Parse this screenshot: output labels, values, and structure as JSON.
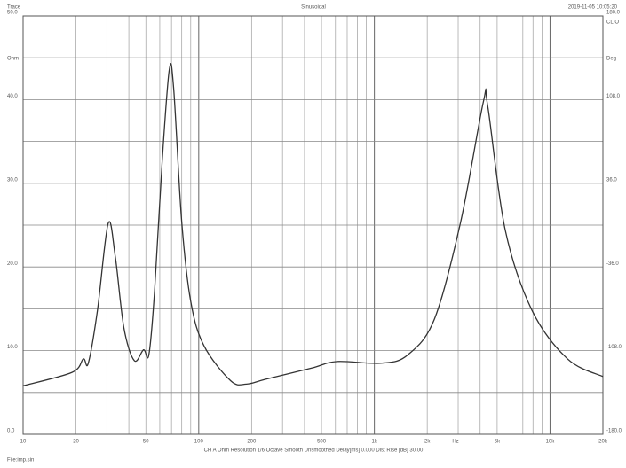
{
  "chart_data": {
    "type": "line",
    "header_left": "Trace",
    "title": "Sinusoidal",
    "timestamp": "2019-11-05 10:05:20",
    "brand": "CLIO",
    "ylabel": "Ohm",
    "y2label": "Deg",
    "xlabel": "Hz",
    "footer": "CH A   Ohm   Resolution 1/6 Octave   Smooth Unsmoothed   Delay[ms] 0.000   Dist Rise [dB] 30.00",
    "file": "File:imp.sin",
    "xscale": "log",
    "xlim": [
      10,
      20000
    ],
    "xticks": [
      10,
      20,
      50,
      100,
      200,
      500,
      {
        "value": 1000,
        "label": "1k"
      },
      {
        "value": 2000,
        "label": "2k"
      },
      {
        "value": 5000,
        "label": "5k"
      },
      {
        "value": 10000,
        "label": "10k"
      },
      {
        "value": 20000,
        "label": "20k"
      }
    ],
    "xgrid": [
      10,
      20,
      30,
      40,
      50,
      60,
      70,
      80,
      90,
      100,
      200,
      300,
      400,
      500,
      600,
      700,
      800,
      900,
      1000,
      2000,
      3000,
      4000,
      5000,
      6000,
      7000,
      8000,
      9000,
      10000,
      20000
    ],
    "ylim": [
      0,
      50
    ],
    "yticks": [
      {
        "value": 0,
        "label": "0.0"
      },
      {
        "value": 10,
        "label": "10.0"
      },
      {
        "value": 20,
        "label": "20.0"
      },
      {
        "value": 30,
        "label": "30.0"
      },
      {
        "value": 40,
        "label": "40.0"
      },
      {
        "value": 50,
        "label": "50.0"
      }
    ],
    "ygrid": [
      0,
      5,
      10,
      15,
      20,
      25,
      30,
      35,
      40,
      45,
      50
    ],
    "y2lim": [
      -180,
      180
    ],
    "y2ticks": [
      {
        "value": -180,
        "label": "-180.0"
      },
      {
        "value": -108,
        "label": "-108.0"
      },
      {
        "value": -36,
        "label": "-36.0"
      },
      {
        "value": 36,
        "label": "36.0"
      },
      {
        "value": 108,
        "label": "108.0"
      },
      {
        "value": 180,
        "label": "180.0"
      }
    ],
    "series": [
      {
        "color": "#333333",
        "x": [
          10,
          19,
          22,
          23.5,
          26.5,
          30.5,
          33.5,
          37.5,
          43,
          48.5,
          52,
          56,
          62,
          68,
          72,
          80,
          90,
          107,
          152,
          187,
          242,
          437,
          612,
          1100,
          1550,
          2200,
          3100,
          4170,
          4420,
          5560,
          7900,
          12600,
          20000
        ],
        "values": [
          5.8,
          7.4,
          9.0,
          8.5,
          14.8,
          25.2,
          21.2,
          12.7,
          8.8,
          10.1,
          9.5,
          17,
          32.8,
          43.6,
          41.3,
          25.4,
          15.9,
          10.6,
          6.4,
          6.0,
          6.6,
          7.9,
          8.7,
          8.5,
          9.5,
          13.8,
          25.4,
          39.7,
          39.2,
          24.4,
          14.8,
          9.0,
          6.9
        ]
      }
    ]
  }
}
